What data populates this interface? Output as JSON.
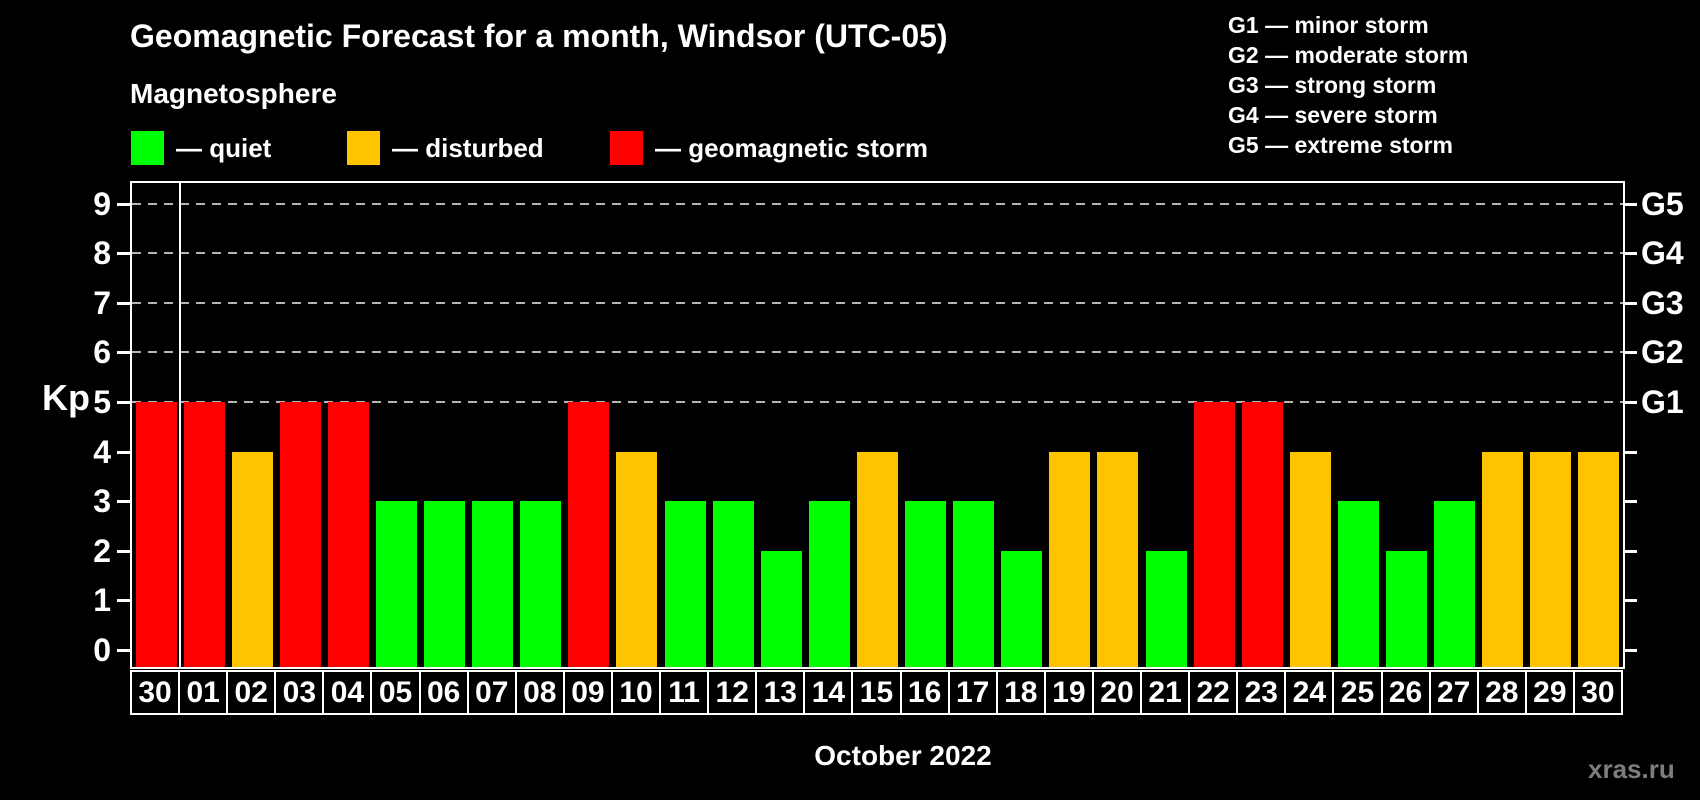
{
  "title": "Geomagnetic Forecast for a month, Windsor (UTC-05)",
  "subtitle": "Magnetosphere",
  "legend": {
    "items": [
      {
        "name": "quiet",
        "label": "— quiet",
        "color": "#00ff00"
      },
      {
        "name": "disturbed",
        "label": "— disturbed",
        "color": "#ffc300"
      },
      {
        "name": "storm",
        "label": "— geomagnetic storm",
        "color": "#ff0000"
      }
    ]
  },
  "g_scale_legend": [
    "G1 — minor storm",
    "G2 — moderate storm",
    "G3 — strong storm",
    "G4 — severe storm",
    "G5 — extreme storm"
  ],
  "watermark": "xras.ru",
  "colors": {
    "quiet": "#00ff00",
    "disturbed": "#ffc300",
    "storm": "#ff0000",
    "axis": "#ffffff",
    "gridline": "#b4b4b4",
    "watermark": "#7d7d7d",
    "background": "#000000"
  },
  "chart_data": {
    "type": "bar",
    "title": "Geomagnetic Forecast for a month, Windsor (UTC-05)",
    "xlabel": "October 2022",
    "ylabel": "Kp",
    "ylim": [
      0,
      9
    ],
    "y_ticks": [
      0,
      1,
      2,
      3,
      4,
      5,
      6,
      7,
      8,
      9
    ],
    "gridlines_at": [
      5,
      6,
      7,
      8,
      9
    ],
    "grid": "dashed horizontal lines at G-storm levels only",
    "legend_position": "top-left",
    "right_axis": {
      "values": [
        5,
        6,
        7,
        8,
        9
      ],
      "labels": [
        "G1",
        "G2",
        "G3",
        "G4",
        "G5"
      ]
    },
    "categories": [
      "30",
      "01",
      "02",
      "03",
      "04",
      "05",
      "06",
      "07",
      "08",
      "09",
      "10",
      "11",
      "12",
      "13",
      "14",
      "15",
      "16",
      "17",
      "18",
      "19",
      "20",
      "21",
      "22",
      "23",
      "24",
      "25",
      "26",
      "27",
      "28",
      "29",
      "30"
    ],
    "values": [
      5,
      5,
      4,
      5,
      5,
      3,
      3,
      3,
      3,
      5,
      4,
      3,
      3,
      2,
      3,
      4,
      3,
      3,
      2,
      4,
      4,
      2,
      5,
      5,
      4,
      3,
      2,
      3,
      4,
      4,
      4
    ],
    "statuses": [
      "storm",
      "storm",
      "disturbed",
      "storm",
      "storm",
      "quiet",
      "quiet",
      "quiet",
      "quiet",
      "storm",
      "disturbed",
      "quiet",
      "quiet",
      "quiet",
      "quiet",
      "disturbed",
      "quiet",
      "quiet",
      "quiet",
      "disturbed",
      "disturbed",
      "quiet",
      "storm",
      "storm",
      "disturbed",
      "quiet",
      "quiet",
      "quiet",
      "disturbed",
      "disturbed",
      "disturbed"
    ],
    "separator_after_index": 0
  }
}
